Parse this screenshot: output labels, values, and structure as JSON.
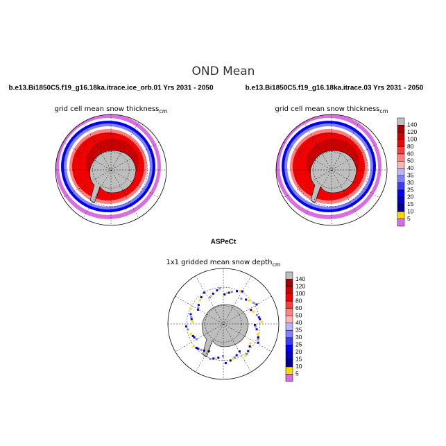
{
  "title": "OND Mean",
  "panels": [
    {
      "title": "b.e13.Bi1850C5.f19_g16.18ka.itrace.ice_orb.01  Yrs 2031 - 2050",
      "subtitle": "grid cell mean snow thickness",
      "unit": "cm"
    },
    {
      "title": "b.e13.Bi1850C5.f19_g16.18ka.itrace.03  Yrs 2031 - 2050",
      "subtitle": "grid cell mean snow thickness",
      "unit": "cm"
    },
    {
      "title": "ASPeCt",
      "subtitle": "1x1 gridded mean snow depth",
      "unit": "cm"
    }
  ],
  "colorbar": {
    "levels": [
      140,
      120,
      100,
      80,
      60,
      50,
      40,
      35,
      30,
      25,
      20,
      15,
      10,
      5
    ],
    "colors": [
      "#bebebe",
      "#a00000",
      "#c80000",
      "#f00000",
      "#ff3c3c",
      "#ff8080",
      "#ffb4b4",
      "#b4b4ff",
      "#8080ff",
      "#3c3cff",
      "#0000f0",
      "#0000c0",
      "#000090",
      "#ffd700",
      "#d86ee0"
    ]
  }
}
